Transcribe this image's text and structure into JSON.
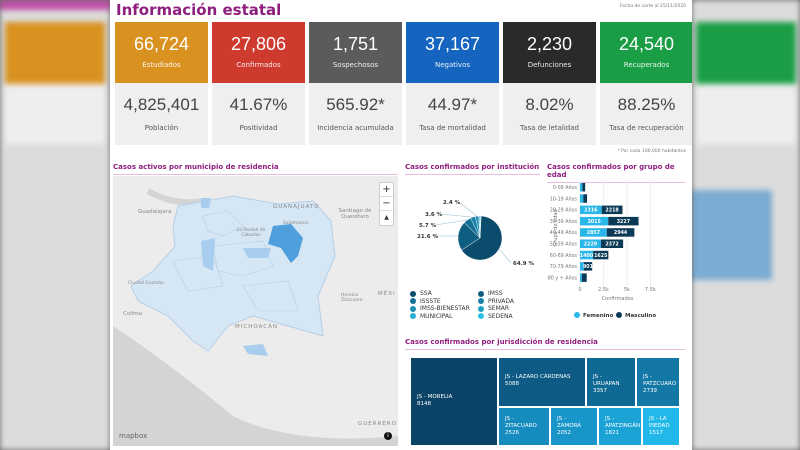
{
  "header": {
    "title": "Información estatal",
    "cutoff": "Fecha de corte al 25/11/2020",
    "note": "* Por cada 100,000 habitantes"
  },
  "cards": [
    {
      "value": "66,724",
      "label": "Estudiados",
      "color": "#d99220",
      "sub_value": "4,825,401",
      "sub_label": "Población"
    },
    {
      "value": "27,806",
      "label": "Confirmados",
      "color": "#cf3a2f",
      "sub_value": "41.67%",
      "sub_label": "Positividad"
    },
    {
      "value": "1,751",
      "label": "Sospechosos",
      "color": "#5b5b5b",
      "sub_value": "565.92*",
      "sub_label": "Incidencia acumulada"
    },
    {
      "value": "37,167",
      "label": "Negativos",
      "color": "#1565c0",
      "sub_value": "44.97*",
      "sub_label": "Tasa de mortalidad"
    },
    {
      "value": "2,230",
      "label": "Defunciones",
      "color": "#2a2a2a",
      "sub_value": "8.02%",
      "sub_label": "Tasa de letalidad"
    },
    {
      "value": "24,540",
      "label": "Recuperados",
      "color": "#1a9e45",
      "sub_value": "88.25%",
      "sub_label": "Tasa de recuperación"
    }
  ],
  "map": {
    "title": "Casos activos por municipio de residencia",
    "labels": [
      "Guadalajara",
      "GUANAJUATO",
      "Santiago de Querétaro",
      "Salamanca",
      "La Piedad de Cabadas",
      "Ciudad Guzmán",
      "Colima",
      "MICHOACÁN",
      "MÉXI",
      "GUERRERO",
      "Heroica Zitácuaro"
    ],
    "attribution": "mapbox",
    "zoom_in": "+",
    "zoom_out": "−",
    "compass": "▲",
    "info": "i"
  },
  "chart_data": [
    {
      "type": "pie",
      "title": "Casos confirmados por institución",
      "slices": [
        {
          "name": "SSA",
          "value": 64.9,
          "color": "#0b4b6b"
        },
        {
          "name": "IMSS",
          "value": 21.6,
          "color": "#0f5e82"
        },
        {
          "name": "ISSSTE",
          "value": 5.7,
          "color": "#146f94"
        },
        {
          "name": "PRIVADA",
          "value": 3.6,
          "color": "#1a80a6"
        },
        {
          "name": "IMSS-BIENESTAR",
          "value": 2.4,
          "color": "#1d8fb5"
        },
        {
          "name": "SEMAR",
          "value": 0.8,
          "color": "#22a0c4"
        },
        {
          "name": "MUNICIPAL",
          "value": 0.6,
          "color": "#27b0d3"
        },
        {
          "name": "SEDENA",
          "value": 0.4,
          "color": "#2dc0e2"
        }
      ],
      "labels": [
        "64.9 %",
        "21.6 %",
        "5.7 %",
        "3.6 %",
        "2.4 %"
      ]
    },
    {
      "type": "bar",
      "orientation": "horizontal",
      "stacked": true,
      "title": "Casos confirmados por grupo de edad",
      "xlabel": "Confirmados",
      "ylabel": "Grupo de edad",
      "categories": [
        "0-09 Años",
        "10-19 Años",
        "20-29 Años",
        "30-39 Años",
        "40-49 Años",
        "50-59 Años",
        "60-69 Años",
        "70-79 Años",
        "80 y + Años"
      ],
      "xticks": [
        "0",
        "2.5k",
        "5k",
        "7.5k"
      ],
      "xlim": [
        0,
        8000
      ],
      "series": [
        {
          "name": "Femenino",
          "color": "#29b6e8",
          "values": [
            250,
            350,
            2316,
            3015,
            2857,
            2229,
            1400,
            400,
            200
          ]
        },
        {
          "name": "Masculino",
          "color": "#0b3a57",
          "values": [
            300,
            400,
            2218,
            3227,
            2944,
            2372,
            1625,
            901,
            518
          ]
        }
      ]
    },
    {
      "type": "treemap",
      "title": "Casos confirmados por jurisdicción de residencia",
      "items": [
        {
          "name": "JS - MORELIA",
          "value": 8148,
          "color": "#0b4466"
        },
        {
          "name": "JS - LAZARO CÁRDENAS",
          "value": 5088,
          "color": "#0d5a85"
        },
        {
          "name": "JS - URUAPAN",
          "value": 3357,
          "color": "#106894"
        },
        {
          "name": "JS - PATZCUARO",
          "value": 2739,
          "color": "#1378a6"
        },
        {
          "name": "JS - ZITACUARO",
          "value": 2526,
          "color": "#168bbd"
        },
        {
          "name": "JS - ZAMORA",
          "value": 2052,
          "color": "#1996c9"
        },
        {
          "name": "JS - APATZINGÁN",
          "value": 1821,
          "color": "#1ca3d6"
        },
        {
          "name": "JS - LA PIEDAD",
          "value": 1517,
          "color": "#22b8ea"
        }
      ]
    }
  ]
}
